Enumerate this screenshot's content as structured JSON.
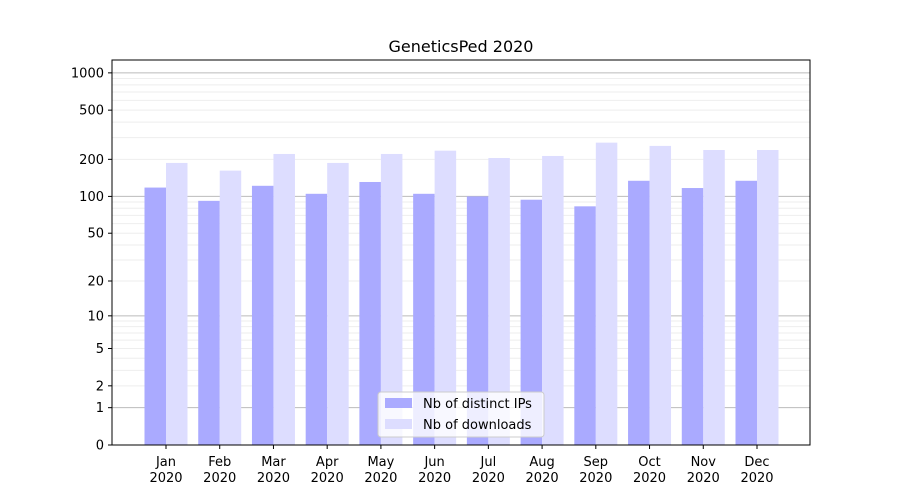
{
  "chart_data": {
    "type": "bar",
    "title": "GeneticsPed 2020",
    "xlabel": "",
    "ylabel": "",
    "yscale": "log10(y+1)",
    "ylim": [
      0,
      1270
    ],
    "grid": true,
    "legend_position": "lower-center",
    "categories": [
      "Jan\n2020",
      "Feb\n2020",
      "Mar\n2020",
      "Apr\n2020",
      "May\n2020",
      "Jun\n2020",
      "Jul\n2020",
      "Aug\n2020",
      "Sep\n2020",
      "Oct\n2020",
      "Nov\n2020",
      "Dec\n2020"
    ],
    "yticks": [
      0,
      1,
      2,
      5,
      10,
      20,
      50,
      100,
      200,
      500,
      1000
    ],
    "series": [
      {
        "name": "Nb of distinct IPs",
        "color": "#aaaaff",
        "values": [
          118,
          92,
          122,
          105,
          131,
          105,
          100,
          94,
          83,
          134,
          117,
          134
        ]
      },
      {
        "name": "Nb of downloads",
        "color": "#ddddff",
        "values": [
          187,
          162,
          221,
          187,
          221,
          235,
          205,
          213,
          273,
          257,
          238,
          238
        ]
      }
    ]
  }
}
